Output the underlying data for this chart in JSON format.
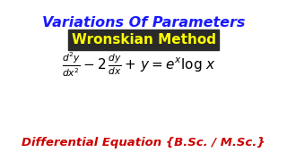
{
  "title": "Variations Of Parameters",
  "subtitle": "Wronskian Method",
  "subtitle_bg": "#2a2a2a",
  "subtitle_color": "#ffff00",
  "footer": "Differential Equation {B.Sc. / M.Sc.}",
  "title_color": "#1a1aff",
  "footer_color": "#cc0000",
  "bg_color": "#ffffff",
  "title_fontsize": 11.5,
  "subtitle_fontsize": 11,
  "equation_fontsize": 11,
  "footer_fontsize": 9.5
}
